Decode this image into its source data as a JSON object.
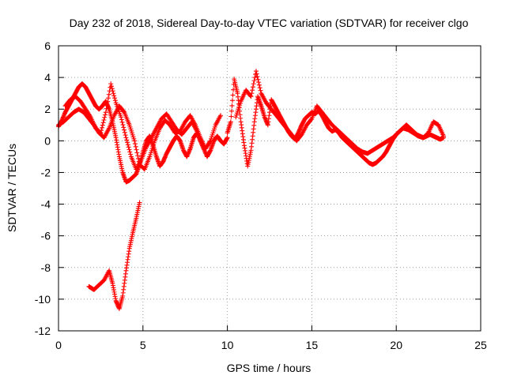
{
  "chart_data": {
    "type": "scatter",
    "title": "Day 232 of 2018, Sidereal Day-to-day VTEC variation (SDTVAR) for receiver clgo",
    "xlabel": "GPS time / hours",
    "ylabel": "SDTVAR / TECUs",
    "xlim": [
      0,
      25
    ],
    "ylim": [
      -12,
      6
    ],
    "xticks": [
      0,
      5,
      10,
      15,
      20,
      25
    ],
    "yticks": [
      -12,
      -10,
      -8,
      -6,
      -4,
      -2,
      0,
      2,
      4,
      6
    ],
    "grid": true,
    "marker": "+",
    "series": [
      {
        "name": "SDTVAR",
        "color": "#ff0000",
        "tracks": [
          {
            "x": [
              0.0,
              0.2,
              0.4,
              0.6,
              0.8,
              1.0,
              1.2,
              1.4,
              1.6,
              1.8,
              2.0,
              2.2,
              2.4,
              2.6,
              2.8,
              3.0,
              3.2,
              3.4,
              3.6,
              3.8,
              4.0,
              4.2,
              4.4,
              4.6,
              4.8,
              5.0,
              5.2,
              5.4,
              5.6,
              5.8,
              6.0,
              6.2,
              6.4,
              6.6,
              6.8,
              7.0,
              7.2,
              7.4,
              7.6,
              7.8,
              8.0,
              8.2,
              8.4,
              8.6,
              8.8,
              9.0,
              9.2,
              9.4,
              9.6,
              9.8,
              10.0
            ],
            "y": [
              0.9,
              1.3,
              1.8,
              2.2,
              2.6,
              3.0,
              3.4,
              3.6,
              3.4,
              3.0,
              2.6,
              2.2,
              2.0,
              2.2,
              2.5,
              2.0,
              1.2,
              0.2,
              -1.0,
              -2.0,
              -2.6,
              -2.5,
              -2.3,
              -2.1,
              -1.5,
              -0.7,
              0.0,
              0.3,
              -0.3,
              -1.0,
              -1.6,
              -1.3,
              -0.8,
              -0.4,
              0.0,
              0.3,
              0.0,
              -0.6,
              -1.0,
              -0.5,
              0.2,
              0.5,
              0.0,
              -0.5,
              -1.0,
              -0.6,
              0.0,
              0.3,
              0.0,
              -0.2,
              0.2
            ]
          },
          {
            "x": [
              0.0,
              0.3,
              0.6,
              0.9,
              1.2,
              1.5,
              1.8,
              2.1,
              2.4,
              2.7,
              3.0,
              3.3,
              3.6,
              3.9,
              4.2,
              4.5,
              4.8,
              5.1,
              5.4,
              5.7,
              6.0,
              6.3,
              6.6,
              6.9,
              7.2,
              7.5,
              7.8,
              8.1,
              8.4,
              8.7,
              9.0,
              9.3,
              9.6
            ],
            "y": [
              1.0,
              1.2,
              1.5,
              1.8,
              2.0,
              1.8,
              1.4,
              1.0,
              0.5,
              0.2,
              0.8,
              1.6,
              2.2,
              1.8,
              1.0,
              0.0,
              -1.5,
              -1.8,
              -1.0,
              0.0,
              0.8,
              1.3,
              1.0,
              0.5,
              0.6,
              1.2,
              1.6,
              1.0,
              0.2,
              -0.5,
              0.0,
              1.0,
              1.6
            ]
          },
          {
            "x": [
              0.4,
              0.7,
              1.0,
              1.3,
              1.6,
              1.9,
              2.2,
              2.5,
              2.8,
              3.1,
              3.4,
              3.7,
              4.0,
              4.3,
              4.6,
              4.9,
              5.2,
              5.5,
              5.8,
              6.1,
              6.4,
              6.7,
              7.0,
              7.3,
              7.6,
              7.9,
              8.2
            ],
            "y": [
              2.2,
              2.6,
              2.8,
              2.5,
              2.0,
              1.5,
              0.8,
              0.5,
              1.8,
              3.6,
              2.4,
              1.5,
              0.2,
              -1.0,
              -1.8,
              -1.2,
              -0.4,
              0.2,
              0.8,
              1.4,
              1.7,
              1.2,
              0.7,
              0.4,
              0.8,
              1.2,
              0.6
            ]
          },
          {
            "x": [
              1.8,
              2.1,
              2.4,
              2.7,
              3.0,
              3.2,
              3.4,
              3.6,
              3.8,
              4.0,
              4.2,
              4.4,
              4.6,
              4.8
            ],
            "y": [
              -9.2,
              -9.4,
              -9.1,
              -8.8,
              -8.2,
              -9.0,
              -10.1,
              -10.6,
              -9.8,
              -8.2,
              -6.8,
              -5.8,
              -4.9,
              -3.9
            ]
          },
          {
            "x": [
              10.0,
              10.2,
              10.4,
              10.6,
              10.8,
              11.0,
              11.2,
              11.4,
              11.6,
              11.8,
              12.0,
              12.2,
              12.4,
              12.6,
              12.8,
              13.0,
              13.2,
              13.4,
              13.6,
              13.8,
              14.0,
              14.2,
              14.4,
              14.6,
              14.8,
              15.0,
              15.2,
              15.4,
              15.6,
              15.8,
              16.0,
              16.2,
              16.4,
              16.6,
              16.8,
              17.0,
              17.2,
              17.4,
              17.6,
              17.8,
              18.0,
              18.2,
              18.4,
              18.6,
              18.8,
              19.0,
              19.2,
              19.4,
              19.6,
              19.8,
              20.0,
              20.2,
              20.4,
              20.6,
              20.8,
              21.0,
              21.2,
              21.4,
              21.6,
              21.8,
              22.0,
              22.2,
              22.4,
              22.6,
              22.8
            ],
            "y": [
              0.5,
              1.2,
              3.9,
              3.0,
              1.2,
              -0.3,
              -1.6,
              -0.6,
              1.2,
              2.8,
              2.2,
              1.5,
              1.0,
              2.6,
              2.2,
              1.8,
              1.4,
              1.0,
              0.6,
              0.3,
              0.1,
              0.5,
              1.0,
              1.4,
              1.6,
              1.8,
              1.7,
              1.9,
              1.6,
              1.2,
              0.8,
              0.6,
              0.7,
              0.5,
              0.2,
              0.0,
              -0.2,
              -0.4,
              -0.6,
              -0.8,
              -1.0,
              -1.2,
              -1.4,
              -1.5,
              -1.4,
              -1.2,
              -1.0,
              -0.7,
              -0.3,
              0.1,
              0.4,
              0.6,
              0.8,
              1.0,
              0.8,
              0.6,
              0.4,
              0.3,
              0.2,
              0.3,
              0.4,
              0.3,
              0.2,
              0.1,
              0.2
            ]
          },
          {
            "x": [
              10.5,
              10.8,
              11.1,
              11.4,
              11.7,
              12.0,
              12.3,
              12.6,
              12.9,
              13.2,
              13.5,
              13.8,
              14.1,
              14.4,
              14.7,
              15.0,
              15.3,
              15.6,
              15.9,
              16.2,
              16.5,
              16.8,
              17.1,
              17.4,
              17.7,
              18.0,
              18.3,
              18.6,
              18.9,
              19.2,
              19.5,
              19.8,
              20.1,
              20.4,
              20.7,
              21.0,
              21.3,
              21.6,
              21.9,
              22.2,
              22.5,
              22.8
            ],
            "y": [
              1.5,
              2.5,
              3.2,
              2.8,
              4.4,
              3.0,
              2.4,
              2.0,
              1.6,
              1.2,
              0.8,
              0.4,
              0.0,
              0.4,
              1.0,
              1.4,
              2.2,
              1.8,
              1.4,
              1.0,
              0.7,
              0.4,
              0.1,
              -0.2,
              -0.5,
              -0.7,
              -0.8,
              -0.6,
              -0.4,
              -0.2,
              0.0,
              0.2,
              0.5,
              0.8,
              0.7,
              0.5,
              0.3,
              0.2,
              0.5,
              1.2,
              1.0,
              0.3
            ]
          }
        ]
      }
    ]
  }
}
